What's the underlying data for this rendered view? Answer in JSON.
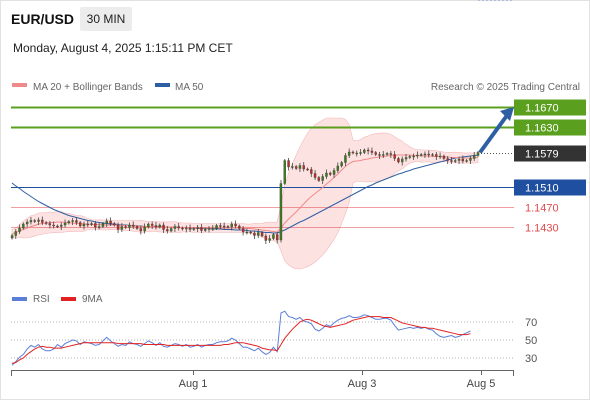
{
  "header": {
    "symbol": "EUR/USD",
    "timeframe": "30 MIN",
    "datetime": "Monday, August 4, 2025 1:15:11 PM CET"
  },
  "legend": {
    "ma20": "MA 20 + Bollinger Bands",
    "ma50": "MA 50",
    "credit": "Research © 2025 Trading Central",
    "rsi": "RSI",
    "ma9": "9MA"
  },
  "colors": {
    "ma20": "#f08a8a",
    "ma50": "#2e5fa3",
    "resistance": "#5aa01e",
    "support": "#1e4fa0",
    "support_minor": "#e0494d",
    "current": "#333333",
    "band_fill": "#fde2e2",
    "arrow": "#2e5fa3",
    "rsi": "#5b7fd8",
    "rsi_ma": "#e22222"
  },
  "chart_data": [
    {
      "type": "candlestick",
      "title": "EUR/USD",
      "x_ticks": [
        "Aug 1",
        "Aug 3",
        "Aug 5"
      ],
      "ylim": [
        1.138,
        1.171
      ],
      "levels": [
        {
          "value": 1.167,
          "label": "1.1670",
          "kind": "resistance"
        },
        {
          "value": 1.163,
          "label": "1.1630",
          "kind": "resistance"
        },
        {
          "value": 1.1579,
          "label": "1.1579",
          "kind": "current"
        },
        {
          "value": 1.151,
          "label": "1.1510",
          "kind": "support"
        },
        {
          "value": 1.147,
          "label": "1.1470",
          "kind": "support-minor"
        },
        {
          "value": 1.143,
          "label": "1.1430",
          "kind": "support-minor"
        }
      ],
      "close_series": [
        1.1413,
        1.1421,
        1.1428,
        1.1436,
        1.144,
        1.1443,
        1.1441,
        1.1444,
        1.1439,
        1.1437,
        1.1434,
        1.1432,
        1.1431,
        1.1434,
        1.1438,
        1.1441,
        1.1443,
        1.1439,
        1.1432,
        1.1436,
        1.1435,
        1.1437,
        1.143,
        1.1431,
        1.1437,
        1.1442,
        1.1437,
        1.1434,
        1.1425,
        1.1431,
        1.1429,
        1.1434,
        1.1431,
        1.1427,
        1.1422,
        1.143,
        1.1436,
        1.1433,
        1.143,
        1.1434,
        1.1425,
        1.1422,
        1.1427,
        1.1431,
        1.1428,
        1.1426,
        1.1428,
        1.1425,
        1.1427,
        1.1429,
        1.1423,
        1.1426,
        1.1427,
        1.1427,
        1.1433,
        1.1432,
        1.1431,
        1.143,
        1.1436,
        1.1432,
        1.1427,
        1.142,
        1.142,
        1.1418,
        1.1413,
        1.1419,
        1.1412,
        1.1403,
        1.1407,
        1.1415,
        1.1404,
        1.1517,
        1.1563,
        1.155,
        1.1551,
        1.1547,
        1.1553,
        1.1546,
        1.1545,
        1.1537,
        1.1529,
        1.1523,
        1.1531,
        1.1538,
        1.1535,
        1.1543,
        1.1552,
        1.1559,
        1.1573,
        1.158,
        1.1578,
        1.1578,
        1.1579,
        1.1584,
        1.1582,
        1.1579,
        1.1575,
        1.1573,
        1.1575,
        1.1577,
        1.1575,
        1.1567,
        1.156,
        1.1566,
        1.1569,
        1.1571,
        1.1572,
        1.1574,
        1.1575,
        1.1576,
        1.1574,
        1.1575,
        1.1571,
        1.1572,
        1.1567,
        1.1563,
        1.1561,
        1.1563,
        1.1566,
        1.1562,
        1.1563,
        1.1567,
        1.1573,
        1.1579
      ],
      "series": [
        {
          "name": "MA 20",
          "values": [
            1.1416,
            1.1419,
            1.1422,
            1.1425,
            1.1428,
            1.1431,
            1.1433,
            1.1436,
            1.1437,
            1.1438,
            1.1439,
            1.1439,
            1.144,
            1.144,
            1.1439,
            1.1439,
            1.1438,
            1.1437,
            1.1437,
            1.1436,
            1.1436,
            1.1435,
            1.1435,
            1.1435,
            1.1434,
            1.1434,
            1.1434,
            1.1434,
            1.1434,
            1.1433,
            1.1433,
            1.1433,
            1.1432,
            1.1432,
            1.1431,
            1.1431,
            1.1431,
            1.1431,
            1.1431,
            1.143,
            1.143,
            1.143,
            1.143,
            1.143,
            1.1429,
            1.1429,
            1.1429,
            1.1429,
            1.1428,
            1.1428,
            1.1428,
            1.1428,
            1.1428,
            1.1428,
            1.1428,
            1.1428,
            1.1428,
            1.1428,
            1.1428,
            1.1428,
            1.1428,
            1.1428,
            1.1427,
            1.1427,
            1.1426,
            1.1425,
            1.1424,
            1.1423,
            1.1422,
            1.1421,
            1.142,
            1.1428,
            1.1438,
            1.1446,
            1.1453,
            1.146,
            1.1468,
            1.1476,
            1.1484,
            1.1491,
            1.1497,
            1.1503,
            1.1509,
            1.1516,
            1.1522,
            1.1529,
            1.1536,
            1.1544,
            1.1551,
            1.1557,
            1.1561,
            1.1562,
            1.1563,
            1.1565,
            1.1566,
            1.1568,
            1.1569,
            1.157,
            1.1571,
            1.1572,
            1.1573,
            1.1574,
            1.1574,
            1.1574,
            1.1574,
            1.1574,
            1.1573,
            1.1573,
            1.1572,
            1.1572,
            1.1572,
            1.1571,
            1.1571,
            1.1571,
            1.157,
            1.157,
            1.1569,
            1.1569,
            1.1569,
            1.1568,
            1.1568,
            1.1568,
            1.1568,
            1.1569
          ]
        },
        {
          "name": "MA 50",
          "values": [
            1.1518,
            1.1512,
            1.1507,
            1.1501,
            1.1496,
            1.1491,
            1.1486,
            1.1481,
            1.1477,
            1.1473,
            1.1469,
            1.1465,
            1.1462,
            1.1459,
            1.1456,
            1.1453,
            1.1451,
            1.1449,
            1.1447,
            1.1445,
            1.1443,
            1.1442,
            1.144,
            1.1439,
            1.1438,
            1.1437,
            1.1436,
            1.1436,
            1.1435,
            1.1434,
            1.1434,
            1.1433,
            1.1433,
            1.1432,
            1.1432,
            1.1431,
            1.1431,
            1.1431,
            1.1431,
            1.1431,
            1.143,
            1.143,
            1.143,
            1.143,
            1.1429,
            1.1429,
            1.1429,
            1.1428,
            1.1428,
            1.1427,
            1.1427,
            1.1427,
            1.1427,
            1.1426,
            1.1426,
            1.1426,
            1.1425,
            1.1425,
            1.1425,
            1.1424,
            1.1424,
            1.1424,
            1.1423,
            1.1422,
            1.1422,
            1.1421,
            1.142,
            1.1419,
            1.1419,
            1.1418,
            1.1418,
            1.1421,
            1.1424,
            1.1428,
            1.1432,
            1.1436,
            1.144,
            1.1443,
            1.1447,
            1.1451,
            1.1455,
            1.1459,
            1.1463,
            1.1467,
            1.1471,
            1.1475,
            1.1479,
            1.1483,
            1.1487,
            1.1491,
            1.1495,
            1.1499,
            1.1503,
            1.1507,
            1.1511,
            1.1514,
            1.1518,
            1.1521,
            1.1524,
            1.1527,
            1.153,
            1.1533,
            1.1536,
            1.1538,
            1.1541,
            1.1543,
            1.1546,
            1.1548,
            1.155,
            1.1552,
            1.1554,
            1.1556,
            1.1558,
            1.156,
            1.1562,
            1.1564,
            1.1566,
            1.1568,
            1.1569,
            1.157,
            1.1571,
            1.1572,
            1.1573,
            1.1574
          ]
        }
      ]
    },
    {
      "type": "line",
      "title": "RSI",
      "y_ticks": [
        70,
        50,
        30
      ],
      "ylim": [
        10,
        85
      ],
      "series": [
        {
          "name": "RSI",
          "values": [
            22,
            26,
            31,
            34,
            40,
            44,
            42,
            45,
            40,
            38,
            38,
            40,
            45,
            42,
            46,
            48,
            50,
            49,
            45,
            48,
            47,
            46,
            44,
            45,
            49,
            53,
            49,
            46,
            43,
            45,
            44,
            48,
            46,
            45,
            43,
            46,
            49,
            47,
            44,
            47,
            43,
            42,
            44,
            46,
            45,
            43,
            45,
            42,
            43,
            45,
            42,
            44,
            45,
            45,
            47,
            48,
            48,
            49,
            52,
            50,
            46,
            42,
            42,
            40,
            38,
            41,
            37,
            34,
            36,
            42,
            37,
            80,
            82,
            76,
            75,
            73,
            75,
            71,
            70,
            68,
            62,
            60,
            63,
            67,
            65,
            69,
            72,
            74,
            75,
            77,
            75,
            75,
            76,
            78,
            77,
            75,
            73,
            73,
            74,
            74,
            72,
            66,
            61,
            62,
            63,
            64,
            63,
            64,
            63,
            64,
            62,
            61,
            57,
            54,
            53,
            54,
            55,
            53,
            54,
            56,
            58,
            60
          ]
        },
        {
          "name": "9MA",
          "values": [
            24,
            25,
            28,
            30,
            34,
            37,
            40,
            42,
            43,
            42,
            42,
            41,
            41,
            41,
            42,
            43,
            44,
            45,
            46,
            47,
            47,
            47,
            47,
            47,
            47,
            47,
            47,
            47,
            46,
            46,
            46,
            46,
            46,
            46,
            46,
            45,
            45,
            45,
            45,
            45,
            45,
            44,
            44,
            44,
            44,
            44,
            44,
            44,
            44,
            44,
            44,
            44,
            44,
            44,
            44,
            44,
            45,
            45,
            46,
            47,
            47,
            47,
            46,
            45,
            44,
            43,
            41,
            40,
            39,
            39,
            38,
            45,
            52,
            57,
            62,
            66,
            70,
            72,
            73,
            72,
            70,
            68,
            66,
            65,
            64,
            65,
            66,
            67,
            68,
            70,
            72,
            73,
            74,
            75,
            76,
            76,
            76,
            76,
            75,
            75,
            75,
            73,
            71,
            69,
            68,
            67,
            66,
            65,
            64,
            64,
            63,
            63,
            62,
            61,
            60,
            59,
            58,
            57,
            56,
            56,
            56,
            57
          ]
        }
      ]
    }
  ]
}
